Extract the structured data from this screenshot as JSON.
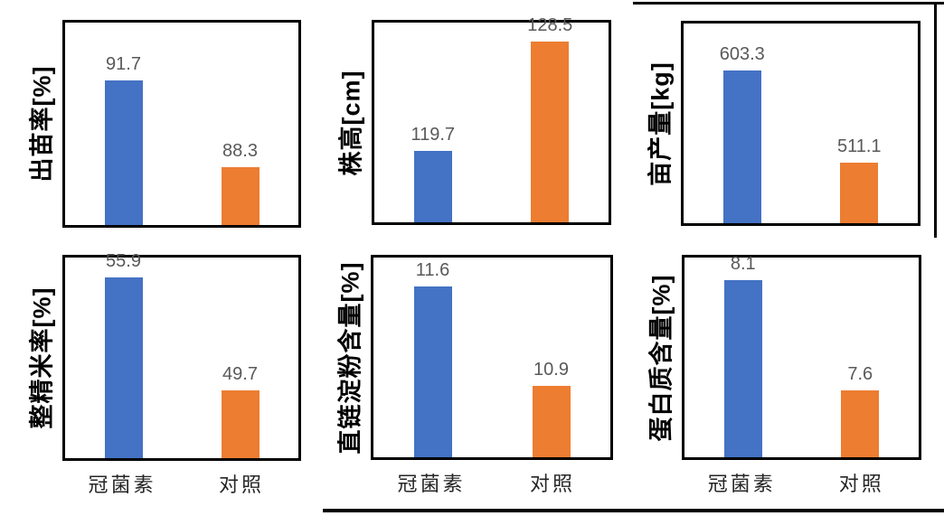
{
  "colors": {
    "treatment_bar": "#4472C4",
    "control_bar": "#ED7D31",
    "value_label": "#595959",
    "category_label": "#262626",
    "axis_title": "#000000",
    "frame_border": "#000000",
    "divider_line": "#000000",
    "background": "#FFFFFF"
  },
  "chart_data": [
    {
      "type": "bar",
      "ylabel": "出苗率[%]",
      "categories": [
        "冠菌素",
        "对照"
      ],
      "values": [
        91.7,
        88.3
      ],
      "value_labels": [
        "91.7",
        "88.3"
      ],
      "ylim": [
        86,
        94
      ],
      "bar_colors": [
        "#4472C4",
        "#ED7D31"
      ],
      "x_axis_labels_visible": false,
      "grid": false,
      "legend": false
    },
    {
      "type": "bar",
      "ylabel": "株高[cm]",
      "categories": [
        "冠菌素",
        "对照"
      ],
      "values": [
        119.7,
        128.5
      ],
      "value_labels": [
        "119.7",
        "128.5"
      ],
      "ylim": [
        114,
        130
      ],
      "bar_colors": [
        "#4472C4",
        "#ED7D31"
      ],
      "x_axis_labels_visible": false,
      "grid": false,
      "legend": false
    },
    {
      "type": "bar",
      "ylabel": "亩产量[kg]",
      "categories": [
        "冠菌素",
        "对照"
      ],
      "values": [
        603.3,
        511.1
      ],
      "value_labels": [
        "603.3",
        "511.1"
      ],
      "ylim": [
        450,
        650
      ],
      "bar_colors": [
        "#4472C4",
        "#ED7D31"
      ],
      "x_axis_labels_visible": false,
      "grid": false,
      "legend": false
    },
    {
      "type": "bar",
      "ylabel": "整精米率[%]",
      "categories": [
        "冠菌素",
        "对照"
      ],
      "values": [
        55.9,
        49.7
      ],
      "value_labels": [
        "55.9",
        "49.7"
      ],
      "ylim": [
        46,
        57
      ],
      "bar_colors": [
        "#4472C4",
        "#ED7D31"
      ],
      "x_axis_labels_visible": true,
      "grid": false,
      "legend": false
    },
    {
      "type": "bar",
      "ylabel": "直链淀粉含量[%]",
      "categories": [
        "冠菌素",
        "对照"
      ],
      "values": [
        11.6,
        10.9
      ],
      "value_labels": [
        "11.6",
        "10.9"
      ],
      "ylim": [
        10.4,
        11.8
      ],
      "bar_colors": [
        "#4472C4",
        "#ED7D31"
      ],
      "x_axis_labels_visible": true,
      "grid": false,
      "legend": false
    },
    {
      "type": "bar",
      "ylabel": "蛋白质含量[%]",
      "categories": [
        "冠菌素",
        "对照"
      ],
      "values": [
        8.1,
        7.6
      ],
      "value_labels": [
        "8.1",
        "7.6"
      ],
      "ylim": [
        7.3,
        8.2
      ],
      "bar_colors": [
        "#4472C4",
        "#ED7D31"
      ],
      "x_axis_labels_visible": true,
      "grid": false,
      "legend": false
    }
  ]
}
